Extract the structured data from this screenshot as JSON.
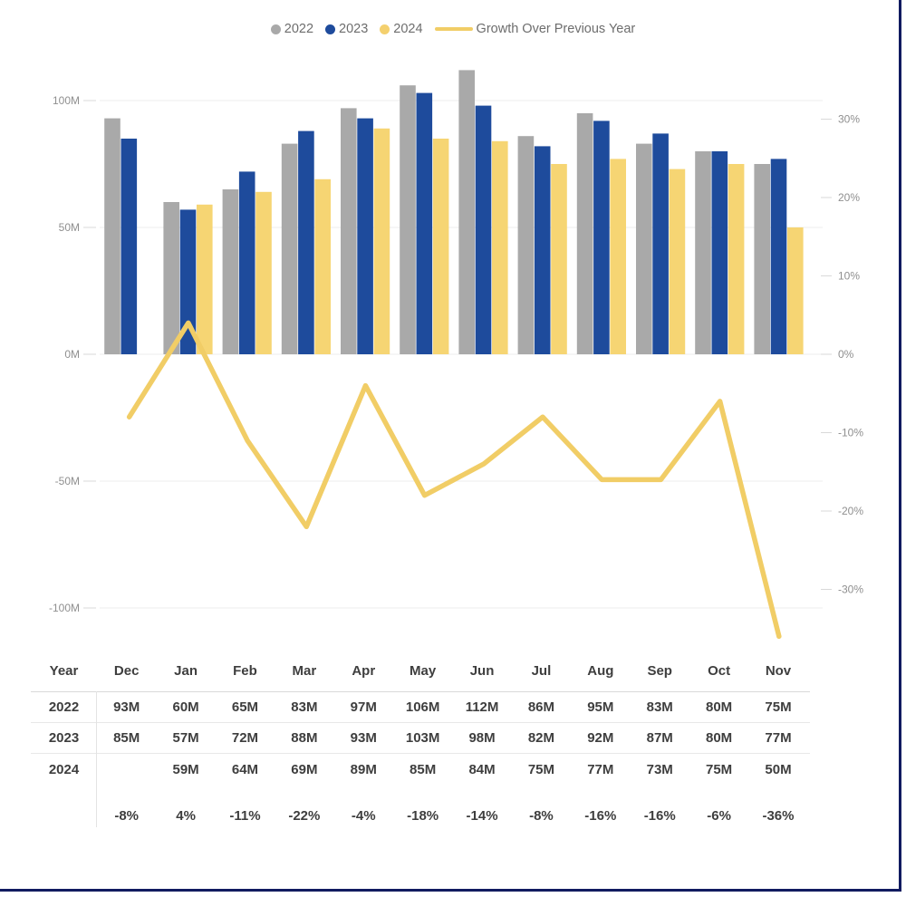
{
  "legend": {
    "items": [
      {
        "label": "2022",
        "swatch": "dot",
        "color": "#a9a9a9"
      },
      {
        "label": "2023",
        "swatch": "dot",
        "color": "#1e4b9c"
      },
      {
        "label": "2024",
        "swatch": "dot",
        "color": "#f4d06e"
      },
      {
        "label": "Growth Over Previous Year",
        "swatch": "line",
        "color": "#f1cd66"
      }
    ]
  },
  "chart_data": {
    "type": "combo: clustered bar + line (dual axis)",
    "categories": [
      "Dec",
      "Jan",
      "Feb",
      "Mar",
      "Apr",
      "May",
      "Jun",
      "Jul",
      "Aug",
      "Sep",
      "Oct",
      "Nov"
    ],
    "series": [
      {
        "name": "2022",
        "type": "bar",
        "axis": "left",
        "color": "#a9a9a9",
        "values": [
          93,
          60,
          65,
          83,
          97,
          106,
          112,
          86,
          95,
          83,
          80,
          75
        ]
      },
      {
        "name": "2023",
        "type": "bar",
        "axis": "left",
        "color": "#1e4b9c",
        "values": [
          85,
          57,
          72,
          88,
          93,
          103,
          98,
          82,
          92,
          87,
          80,
          77
        ]
      },
      {
        "name": "2024",
        "type": "bar",
        "axis": "left",
        "color": "#f6d573",
        "values": [
          null,
          59,
          64,
          69,
          89,
          85,
          84,
          75,
          77,
          73,
          75,
          50
        ]
      },
      {
        "name": "Growth Over Previous Year",
        "type": "line",
        "axis": "right",
        "color": "#f1cd66",
        "values": [
          -8,
          4,
          -11,
          -22,
          -4,
          -18,
          -14,
          -8,
          -16,
          -16,
          -6,
          -36
        ]
      }
    ],
    "title": "",
    "xlabel": "",
    "left_axis": {
      "unit": "M",
      "ticks": [
        "100M",
        "50M",
        "0M",
        "-50M",
        "-100M"
      ],
      "tick_values": [
        100,
        50,
        0,
        -50,
        -100
      ],
      "range": [
        -115,
        115
      ]
    },
    "right_axis": {
      "unit": "%",
      "ticks": [
        "30%",
        "20%",
        "10%",
        "0%",
        "-10%",
        "-20%",
        "-30%"
      ],
      "tick_values": [
        30,
        20,
        10,
        0,
        -10,
        -20,
        -30
      ],
      "range": [
        -37,
        37
      ]
    },
    "grid": true,
    "legend_position": "top"
  },
  "table": {
    "header": [
      "Year",
      "Dec",
      "Jan",
      "Feb",
      "Mar",
      "Apr",
      "May",
      "Jun",
      "Jul",
      "Aug",
      "Sep",
      "Oct",
      "Nov"
    ],
    "rows": [
      {
        "label": "2022",
        "values": [
          "93M",
          "60M",
          "65M",
          "83M",
          "97M",
          "106M",
          "112M",
          "86M",
          "95M",
          "83M",
          "80M",
          "75M"
        ]
      },
      {
        "label": "2023",
        "values": [
          "85M",
          "57M",
          "72M",
          "88M",
          "93M",
          "103M",
          "98M",
          "82M",
          "92M",
          "87M",
          "80M",
          "77M"
        ]
      },
      {
        "label": "2024",
        "values": [
          "",
          "59M",
          "64M",
          "69M",
          "89M",
          "85M",
          "84M",
          "75M",
          "77M",
          "73M",
          "75M",
          "50M"
        ]
      }
    ],
    "growth_row": {
      "label": "",
      "values": [
        "-8%",
        "4%",
        "-11%",
        "-22%",
        "-4%",
        "-18%",
        "-14%",
        "-8%",
        "-16%",
        "-16%",
        "-6%",
        "-36%"
      ]
    }
  },
  "colors": {
    "bar_2022": "#a9a9a9",
    "bar_2023": "#1e4b9c",
    "bar_2024": "#f6d573",
    "growth_line": "#f1cd66",
    "gridline": "#ececec",
    "tick_dash": "#d9d9d9",
    "axis_text": "#8f8f8f",
    "legend_text": "#6d6d6d",
    "table_text": "#3e3e3e",
    "frame_border": "#111b60",
    "background": "#ffffff"
  }
}
